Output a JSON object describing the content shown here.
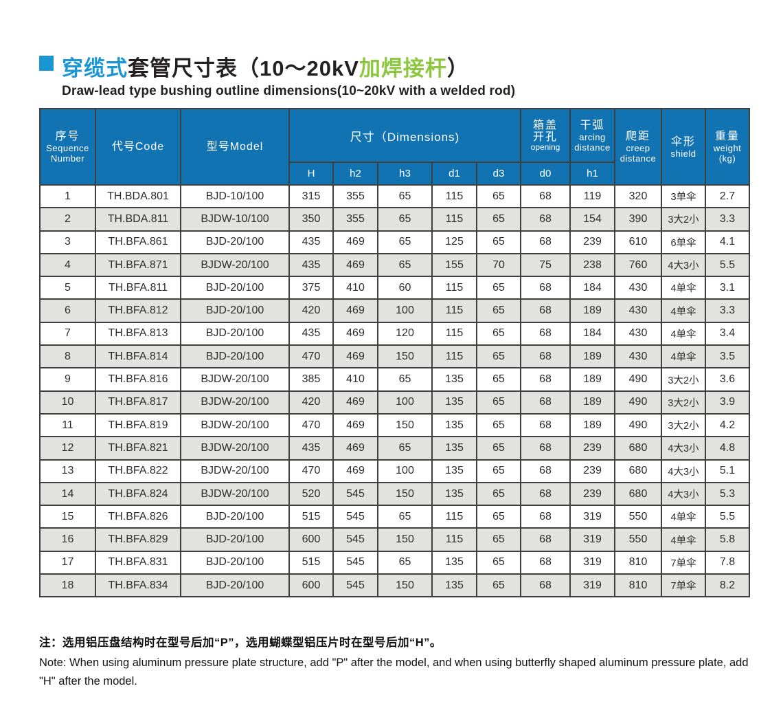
{
  "colors": {
    "header_blue": "#1273b2",
    "title_accent_blue": "#1b96d5",
    "title_accent_green": "#8dc63f",
    "row_alt_gray": "#e2e2e0",
    "grid_line": "#3f3f3f"
  },
  "title": {
    "zh_part_blue": "穿缆式",
    "zh_part_black": "套管尺寸表（10～20kV",
    "zh_part_green": "加焊接杆",
    "zh_part_close": "）",
    "en_subtitle": "Draw-lead type bushing outline dimensions(10~20kV with a welded rod)"
  },
  "table": {
    "headers": {
      "seq_zh": "序号",
      "seq_en1": "Sequence",
      "seq_en2": "Number",
      "code": "代号Code",
      "model": "型号Model",
      "dimensions": "尺寸（Dimensions)",
      "opening_zh1": "箱盖",
      "opening_zh2": "开孔",
      "opening_en": "opening",
      "arcing_zh": "干弧",
      "arcing_en1": "arcing",
      "arcing_en2": "distance",
      "creep_zh": "爬距",
      "creep_en1": "creep",
      "creep_en2": "distance",
      "shield_zh": "伞形",
      "shield_en": "shield",
      "weight_zh": "重量",
      "weight_en": "weight",
      "weight_unit": "(kg)",
      "sub": [
        "H",
        "h2",
        "h3",
        "d1",
        "d3",
        "d0",
        "h1"
      ]
    },
    "rows": [
      [
        "1",
        "TH.BDA.801",
        "BJD-10/100",
        "315",
        "355",
        "65",
        "115",
        "65",
        "68",
        "119",
        "320",
        "3单伞",
        "2.7"
      ],
      [
        "2",
        "TH.BDA.811",
        "BJDW-10/100",
        "350",
        "355",
        "65",
        "115",
        "65",
        "68",
        "154",
        "390",
        "3大2小",
        "3.3"
      ],
      [
        "3",
        "TH.BFA.861",
        "BJD-20/100",
        "435",
        "469",
        "65",
        "125",
        "65",
        "68",
        "239",
        "610",
        "6单伞",
        "4.1"
      ],
      [
        "4",
        "TH.BFA.871",
        "BJDW-20/100",
        "435",
        "469",
        "65",
        "155",
        "70",
        "75",
        "238",
        "760",
        "4大3小",
        "5.5"
      ],
      [
        "5",
        "TH.BFA.811",
        "BJD-20/100",
        "375",
        "410",
        "60",
        "115",
        "65",
        "68",
        "184",
        "430",
        "4单伞",
        "3.1"
      ],
      [
        "6",
        "TH.BFA.812",
        "BJD-20/100",
        "420",
        "469",
        "100",
        "115",
        "65",
        "68",
        "189",
        "430",
        "4单伞",
        "3.3"
      ],
      [
        "7",
        "TH.BFA.813",
        "BJD-20/100",
        "435",
        "469",
        "120",
        "115",
        "65",
        "68",
        "184",
        "430",
        "4单伞",
        "3.4"
      ],
      [
        "8",
        "TH.BFA.814",
        "BJD-20/100",
        "470",
        "469",
        "150",
        "115",
        "65",
        "68",
        "189",
        "430",
        "4单伞",
        "3.5"
      ],
      [
        "9",
        "TH.BFA.816",
        "BJDW-20/100",
        "385",
        "410",
        "65",
        "135",
        "65",
        "68",
        "189",
        "490",
        "3大2小",
        "3.6"
      ],
      [
        "10",
        "TH.BFA.817",
        "BJDW-20/100",
        "420",
        "469",
        "100",
        "135",
        "65",
        "68",
        "189",
        "490",
        "3大2小",
        "3.9"
      ],
      [
        "11",
        "TH.BFA.819",
        "BJDW-20/100",
        "470",
        "469",
        "150",
        "135",
        "65",
        "68",
        "189",
        "490",
        "3大2小",
        "4.2"
      ],
      [
        "12",
        "TH.BFA.821",
        "BJDW-20/100",
        "435",
        "469",
        "65",
        "135",
        "65",
        "68",
        "239",
        "680",
        "4大3小",
        "4.8"
      ],
      [
        "13",
        "TH.BFA.822",
        "BJDW-20/100",
        "470",
        "469",
        "100",
        "135",
        "65",
        "68",
        "239",
        "680",
        "4大3小",
        "5.1"
      ],
      [
        "14",
        "TH.BFA.824",
        "BJDW-20/100",
        "520",
        "545",
        "150",
        "135",
        "65",
        "68",
        "239",
        "680",
        "4大3小",
        "5.3"
      ],
      [
        "15",
        "TH.BFA.826",
        "BJD-20/100",
        "515",
        "545",
        "65",
        "115",
        "65",
        "68",
        "319",
        "550",
        "4单伞",
        "5.5"
      ],
      [
        "16",
        "TH.BFA.829",
        "BJD-20/100",
        "600",
        "545",
        "150",
        "115",
        "65",
        "68",
        "319",
        "550",
        "4单伞",
        "5.8"
      ],
      [
        "17",
        "TH.BFA.831",
        "BJD-20/100",
        "515",
        "545",
        "65",
        "135",
        "65",
        "68",
        "319",
        "810",
        "7单伞",
        "7.8"
      ],
      [
        "18",
        "TH.BFA.834",
        "BJD-20/100",
        "600",
        "545",
        "150",
        "135",
        "65",
        "68",
        "319",
        "810",
        "7单伞",
        "8.2"
      ]
    ]
  },
  "note": {
    "zh": "注：选用铝压盘结构时在型号后加“P”，选用蝴蝶型铝压片时在型号后加“H”。",
    "en": "Note: When using aluminum pressure plate structure, add \"P\" after the model, and when using butterfly shaped aluminum pressure plate, add \"H\" after the model."
  }
}
